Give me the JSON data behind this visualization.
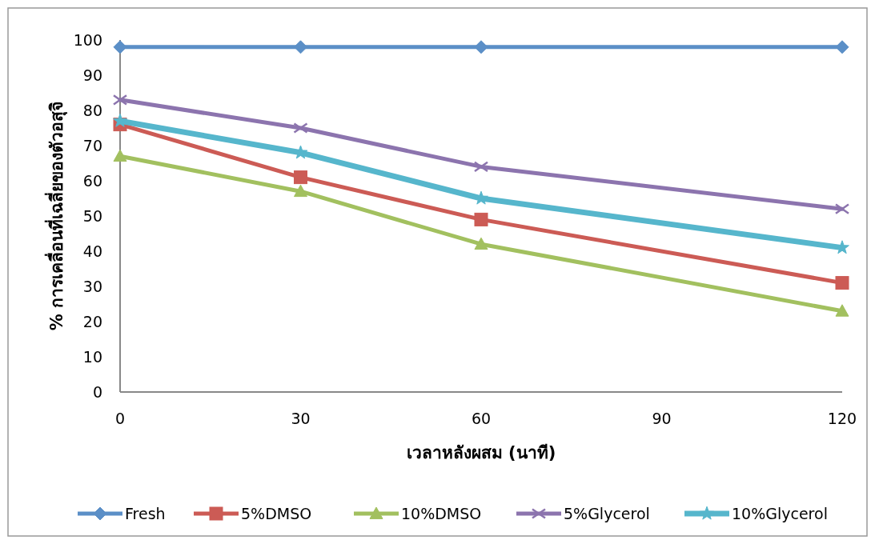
{
  "chart_data": {
    "type": "line",
    "xlabel": "เวลาหลังผสม (นาที)",
    "ylabel": "% การเคลื่อนที่เฉลี่ยของตัวอสุจิ",
    "x": [
      0,
      30,
      60,
      120
    ],
    "xlim": [
      0,
      120
    ],
    "xticks": [
      0,
      30,
      60,
      90,
      120
    ],
    "ylim": [
      0,
      100
    ],
    "yticks": [
      0,
      10,
      20,
      30,
      40,
      50,
      60,
      70,
      80,
      90,
      100
    ],
    "grid": false,
    "legend": "bottom",
    "line_style": "solid",
    "series": [
      {
        "name": "Fresh",
        "color": "#5b8fc7",
        "marker": "diamond",
        "values": [
          98,
          98,
          98,
          98
        ]
      },
      {
        "name": "5%DMSO",
        "color": "#cc5b55",
        "marker": "square",
        "values": [
          76,
          61,
          49,
          31
        ]
      },
      {
        "name": "10%DMSO",
        "color": "#a2c05f",
        "marker": "triangle",
        "values": [
          67,
          57,
          42,
          23
        ]
      },
      {
        "name": "5%Glycerol",
        "color": "#8c74ae",
        "marker": "cross",
        "values": [
          83,
          75,
          64,
          52
        ]
      },
      {
        "name": "10%Glycerol",
        "color": "#56b6cc",
        "marker": "star",
        "values": [
          77,
          68,
          55,
          41
        ]
      }
    ]
  }
}
